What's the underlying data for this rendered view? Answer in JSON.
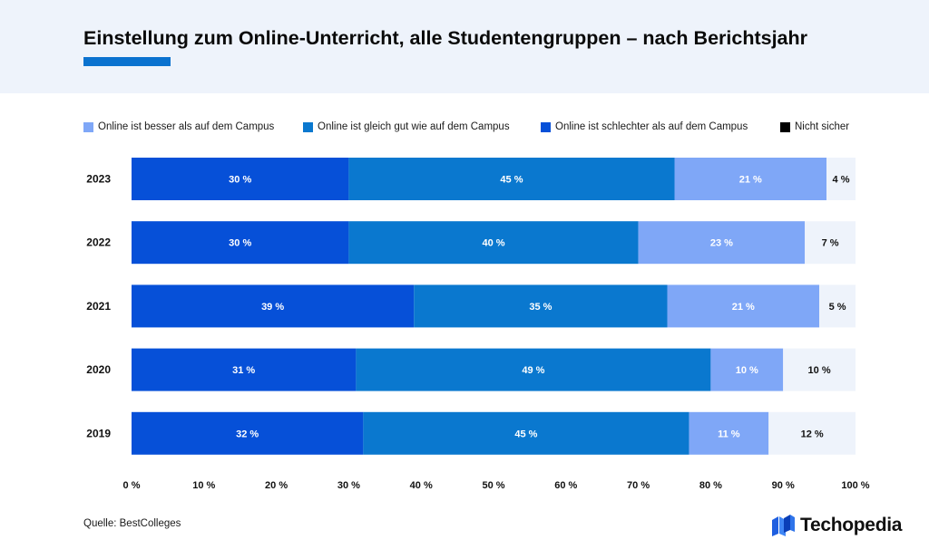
{
  "header": {
    "title": "Einstellung zum Online-Unterricht, alle Studentengruppen – nach Berichtsjahr"
  },
  "colors": {
    "header_bg": "#eef3fb",
    "accent": "#0a72cf",
    "worse": "#0650d8",
    "equal": "#0a78cf",
    "better": "#7fa7f7",
    "unsure_bg": "#eef3fb"
  },
  "legend": [
    {
      "label": "Online ist besser als auf dem Campus",
      "color": "#7fa7f7"
    },
    {
      "label": "Online ist gleich gut wie auf dem Campus",
      "color": "#0a78cf"
    },
    {
      "label": "Online ist schlechter als auf dem Campus",
      "color": "#0650d8"
    },
    {
      "label": "Nicht sicher",
      "color": "#000000"
    }
  ],
  "chart_data": {
    "type": "bar",
    "orientation": "horizontal",
    "stacked": true,
    "title": "Einstellung zum Online-Unterricht, alle Studentengruppen – nach Berichtsjahr",
    "categories": [
      "2023",
      "2022",
      "2021",
      "2020",
      "2019"
    ],
    "series": [
      {
        "name": "Online ist schlechter als auf dem Campus",
        "values": [
          30,
          30,
          39,
          31,
          32
        ],
        "labels": [
          "30 %",
          "30 %",
          "39 %",
          "31 %",
          "32 %"
        ]
      },
      {
        "name": "Online ist gleich gut wie auf dem Campus",
        "values": [
          45,
          40,
          35,
          49,
          45
        ],
        "labels": [
          "45 %",
          "40 %",
          "35 %",
          "49 %",
          "45 %"
        ]
      },
      {
        "name": "Online ist besser als auf dem Campus",
        "values": [
          21,
          23,
          21,
          10,
          11
        ],
        "labels": [
          "21 %",
          "23 %",
          "21 %",
          "10 %",
          "11 %"
        ]
      },
      {
        "name": "Nicht sicher",
        "values": [
          4,
          7,
          5,
          10,
          12
        ],
        "labels": [
          "4 %",
          "7 %",
          "5 %",
          "10 %",
          "12 %"
        ]
      }
    ],
    "x_ticks": [
      "0 %",
      "10 %",
      "20 %",
      "30 %",
      "40 %",
      "50 %",
      "60 %",
      "70 %",
      "80 %",
      "90 %",
      "100 %"
    ],
    "xlim": [
      0,
      100
    ],
    "xlabel": "",
    "ylabel": "",
    "legend_position": "top",
    "grid": false
  },
  "source": "Quelle: BestColleges",
  "logo": {
    "text": "Techopedia",
    "icon": "techopedia-logo-icon"
  }
}
